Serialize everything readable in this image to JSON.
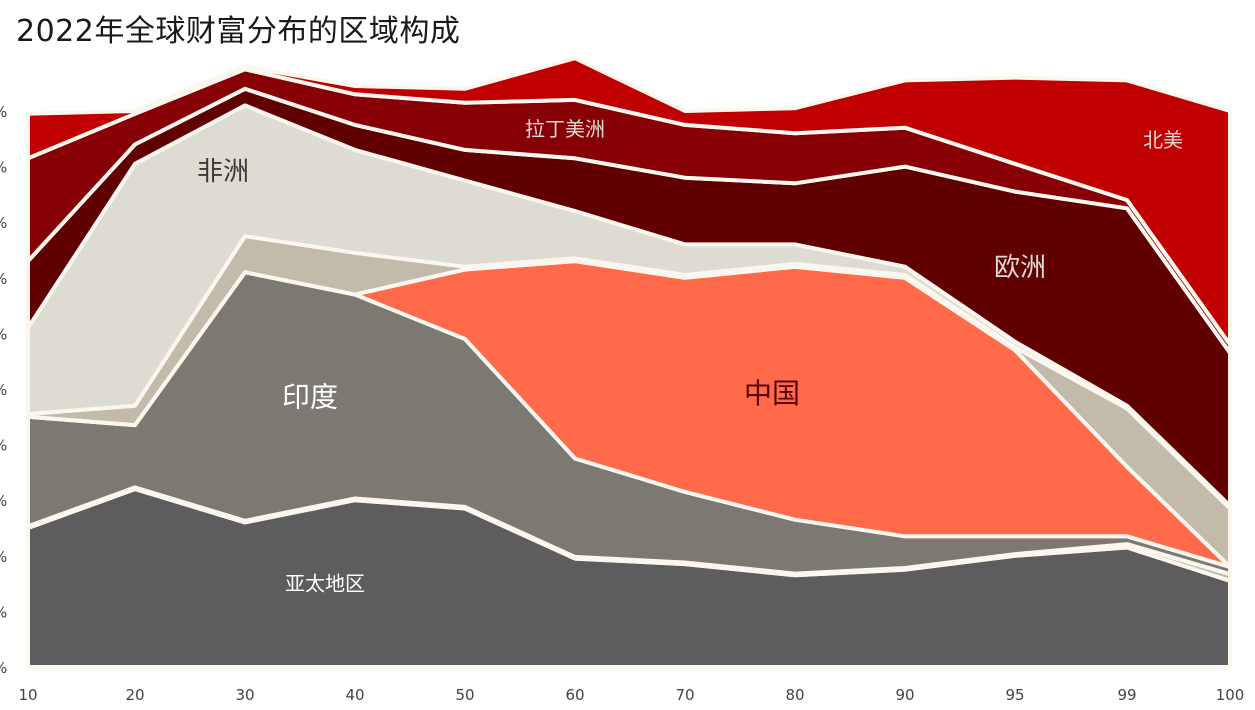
{
  "title": "2022年全球财富分布的区域构成",
  "chart_data": {
    "type": "area",
    "stacked": true,
    "normalized": true,
    "title": "2022年全球财富分布的区域构成",
    "xlabel": "",
    "ylabel": "",
    "categories": [
      "10",
      "20",
      "30",
      "40",
      "50",
      "60",
      "70",
      "80",
      "90",
      "95",
      "99",
      "100"
    ],
    "ylim": [
      0,
      100
    ],
    "legend": "none",
    "series": [
      {
        "name": "亚太地区",
        "color": "#5d5d5f",
        "label_color": "#ffffff",
        "values": [
          25,
          32,
          26,
          30,
          28.5,
          19.5,
          18.5,
          16.5,
          17.5,
          20,
          21.5,
          15.5
        ]
      },
      {
        "name": "",
        "color": "#c2baab",
        "label_color": "#ffffff",
        "values": [
          0.3,
          0.3,
          0.3,
          0.3,
          0.3,
          0.3,
          0.3,
          0.3,
          0.3,
          0.3,
          0.6,
          1.2
        ]
      },
      {
        "name": "印度",
        "color": "#7c7872",
        "label_color": "#ffffff",
        "values": [
          19.7,
          11.2,
          44.7,
          36.7,
          30.2,
          17.7,
          12.7,
          9.7,
          5.7,
          3.2,
          1.4,
          1.3
        ]
      },
      {
        "name": "中国",
        "color": "#ff6a4a",
        "label_color": "#5a0000",
        "values": [
          0,
          0,
          0,
          0,
          12.5,
          35.5,
          38.5,
          45.5,
          46.5,
          33.5,
          12.5,
          0
        ]
      },
      {
        "name": "",
        "color": "#c2baab",
        "label_color": "#ffffff",
        "values": [
          0.5,
          3.5,
          6.5,
          7.5,
          0.5,
          0.5,
          0.5,
          0.5,
          0.5,
          0.5,
          10.5,
          10.5
        ]
      },
      {
        "name": "非洲",
        "color": "#dedbd3",
        "label_color": "#3a3a3a",
        "values": [
          15.5,
          43.5,
          23.5,
          18.5,
          15.5,
          8.5,
          5.5,
          3.5,
          1.5,
          1.0,
          0.5,
          0.5
        ]
      },
      {
        "name": "欧洲",
        "color": "#600000",
        "label_color": "#dedbd3",
        "values": [
          12,
          3.5,
          3,
          4.5,
          5.5,
          9.5,
          12,
          11,
          18,
          27,
          35.5,
          27.5
        ]
      },
      {
        "name": "拉丁美洲",
        "color": "#870006",
        "label_color": "#dedbd3",
        "values": [
          18.5,
          5.5,
          3.5,
          5.5,
          8.5,
          10.5,
          9.5,
          9,
          7,
          5,
          1.5,
          1.5
        ]
      },
      {
        "name": "北美",
        "color": "#c00000",
        "label_color": "#dedbd3",
        "values": [
          8,
          0.5,
          0.5,
          1.5,
          2.5,
          7.5,
          2.5,
          4.5,
          8.5,
          15.5,
          21.5,
          42
        ]
      }
    ]
  }
}
